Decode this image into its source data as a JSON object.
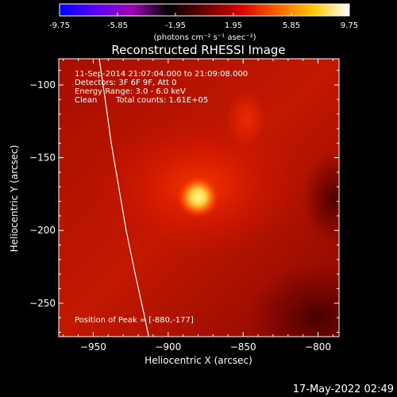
{
  "colorbar": {
    "tick_labels": [
      "-9.75",
      "-5.85",
      "-1.95",
      "1.95",
      "5.85",
      "9.75"
    ],
    "tick_values": [
      -9.75,
      -5.85,
      -1.95,
      1.95,
      5.85,
      9.75
    ],
    "range": [
      -9.75,
      9.75
    ],
    "units": "(photons cm⁻² s⁻¹ asec⁻²)",
    "colormap": "hot-with-negative-blue-purple",
    "stops": [
      "#0000ff",
      "#5a00ff",
      "#a000b0",
      "#000000",
      "#6a0000",
      "#d80000",
      "#ff6000",
      "#ffc800",
      "#ffffff"
    ]
  },
  "chart_data": {
    "type": "heatmap",
    "title": "Reconstructed RHESSI Image",
    "xlabel": "Heliocentric X (arcsec)",
    "ylabel": "Heliocentric Y (arcsec)",
    "xlim": [
      -973,
      -786
    ],
    "ylim": [
      -273,
      -82
    ],
    "x_ticks": [
      -950,
      -900,
      -850,
      -800
    ],
    "x_tick_labels": [
      "−950",
      "−900",
      "−850",
      "−800"
    ],
    "y_ticks": [
      -100,
      -150,
      -200,
      -250
    ],
    "y_tick_labels": [
      "−100",
      "−150",
      "−200",
      "−250"
    ],
    "peak": {
      "x": -880,
      "y": -177
    },
    "limb_curve": [
      [
        -946,
        -82
      ],
      [
        -942,
        -110
      ],
      [
        -938,
        -140
      ],
      [
        -933,
        -170
      ],
      [
        -928,
        -200
      ],
      [
        -922,
        -230
      ],
      [
        -916,
        -258
      ],
      [
        -913,
        -273
      ]
    ],
    "annotations": {
      "time_range": "11-Sep-2014 21:07:04.000 to 21:09:08.000",
      "detectors": "Detectors: 3F 6F 9F, Att 0",
      "energy": "Energy Range: 3.0 - 6.0 keV",
      "method": "Clean",
      "counts": "Total counts: 1.61E+05",
      "peak_text": "Position of Peak = [-880,-177]"
    },
    "grid": false,
    "colors": {
      "background": "#000000",
      "image_base": "#c01500",
      "peak_core": "#ffff90",
      "limb_line": "#ffffff"
    }
  },
  "footer": {
    "timestamp": "17-May-2022 02:49"
  }
}
